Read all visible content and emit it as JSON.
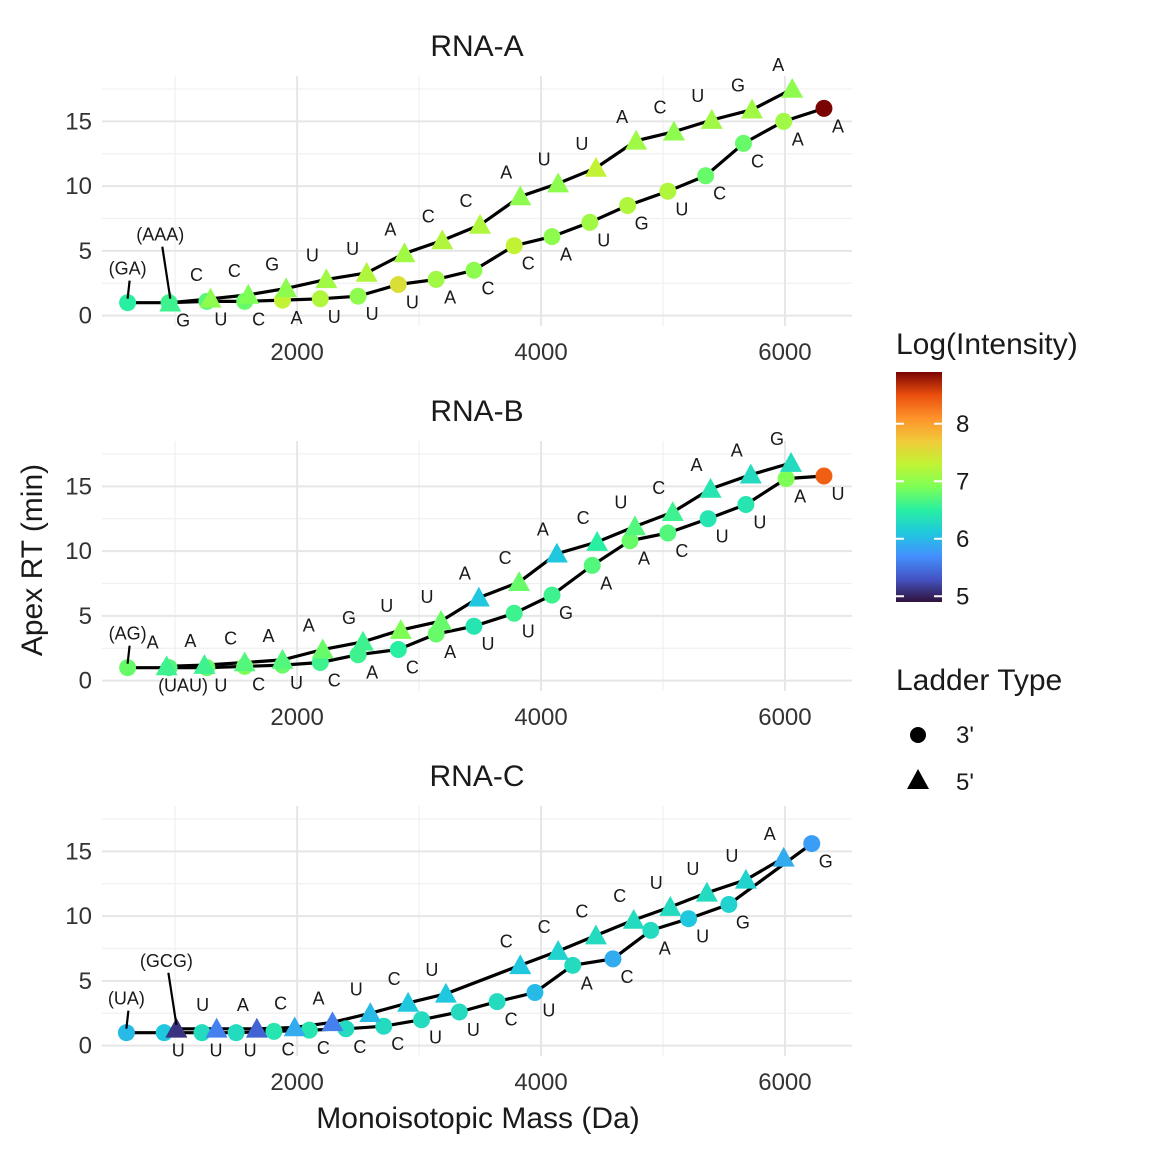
{
  "y_axis_title": "Apex RT (min)",
  "x_axis_title": "Monoisotopic Mass (Da)",
  "legend": {
    "color_title": "Log(Intensity)",
    "color_ticks": [
      "5",
      "6",
      "7",
      "8"
    ],
    "color_range": [
      4.9,
      8.9
    ],
    "shape_title": "Ladder Type",
    "shape_items": [
      {
        "label": "3'",
        "shape": "circle"
      },
      {
        "label": "5'",
        "shape": "triangle"
      }
    ]
  },
  "chart_data": [
    {
      "type": "scatter",
      "title": "RNA-A",
      "xlim": [
        400,
        6550
      ],
      "ylim": [
        -0.8,
        18.5
      ],
      "x_ticks": [
        "2000",
        "4000",
        "6000"
      ],
      "y_ticks": [
        "0",
        "5",
        "10",
        "15"
      ],
      "series": [
        {
          "name": "3'",
          "shape": "circle",
          "points": [
            {
              "x": 610,
              "y": 1.0,
              "c": 6.5,
              "label": "(GA)"
            },
            {
              "x": 950,
              "y": 1.0,
              "c": 6.6,
              "label": "G"
            },
            {
              "x": 1260,
              "y": 1.1,
              "c": 6.7,
              "label": "U"
            },
            {
              "x": 1570,
              "y": 1.1,
              "c": 6.8,
              "label": "C"
            },
            {
              "x": 1880,
              "y": 1.2,
              "c": 7.3,
              "label": "A"
            },
            {
              "x": 2190,
              "y": 1.3,
              "c": 7.2,
              "label": "U"
            },
            {
              "x": 2500,
              "y": 1.5,
              "c": 7.0,
              "label": "U"
            },
            {
              "x": 2830,
              "y": 2.4,
              "c": 7.5,
              "label": "U"
            },
            {
              "x": 3140,
              "y": 2.8,
              "c": 7.1,
              "label": "A"
            },
            {
              "x": 3450,
              "y": 3.5,
              "c": 7.0,
              "label": "C"
            },
            {
              "x": 3780,
              "y": 5.4,
              "c": 7.3,
              "label": "C"
            },
            {
              "x": 4090,
              "y": 6.1,
              "c": 7.0,
              "label": "A"
            },
            {
              "x": 4400,
              "y": 7.2,
              "c": 7.1,
              "label": "U"
            },
            {
              "x": 4710,
              "y": 8.5,
              "c": 7.2,
              "label": "G"
            },
            {
              "x": 5040,
              "y": 9.6,
              "c": 7.2,
              "label": "U"
            },
            {
              "x": 5350,
              "y": 10.8,
              "c": 6.8,
              "label": "C"
            },
            {
              "x": 5660,
              "y": 13.3,
              "c": 6.8,
              "label": "C"
            },
            {
              "x": 5990,
              "y": 15.0,
              "c": 7.1,
              "label": "A"
            },
            {
              "x": 6320,
              "y": 16.0,
              "c": 8.9,
              "label": "A"
            }
          ]
        },
        {
          "name": "5'",
          "shape": "triangle",
          "points": [
            {
              "x": 960,
              "y": 1.0,
              "c": 6.6,
              "label": "(AAA)"
            },
            {
              "x": 1290,
              "y": 1.3,
              "c": 7.0,
              "label": "C"
            },
            {
              "x": 1600,
              "y": 1.6,
              "c": 6.9,
              "label": "C"
            },
            {
              "x": 1910,
              "y": 2.1,
              "c": 7.0,
              "label": "G"
            },
            {
              "x": 2240,
              "y": 2.8,
              "c": 7.1,
              "label": "U"
            },
            {
              "x": 2570,
              "y": 3.3,
              "c": 7.2,
              "label": "U"
            },
            {
              "x": 2880,
              "y": 4.8,
              "c": 7.1,
              "label": "A"
            },
            {
              "x": 3190,
              "y": 5.8,
              "c": 7.2,
              "label": "C"
            },
            {
              "x": 3500,
              "y": 7.0,
              "c": 7.2,
              "label": "C"
            },
            {
              "x": 3830,
              "y": 9.2,
              "c": 7.0,
              "label": "A"
            },
            {
              "x": 4140,
              "y": 10.2,
              "c": 7.0,
              "label": "U"
            },
            {
              "x": 4450,
              "y": 11.4,
              "c": 7.3,
              "label": "U"
            },
            {
              "x": 4780,
              "y": 13.5,
              "c": 7.1,
              "label": "A"
            },
            {
              "x": 5090,
              "y": 14.2,
              "c": 7.0,
              "label": "C"
            },
            {
              "x": 5400,
              "y": 15.1,
              "c": 7.1,
              "label": "U"
            },
            {
              "x": 5730,
              "y": 15.9,
              "c": 7.1,
              "label": "G"
            },
            {
              "x": 6060,
              "y": 17.5,
              "c": 7.0,
              "label": "A"
            }
          ]
        }
      ]
    },
    {
      "type": "scatter",
      "title": "RNA-B",
      "xlim": [
        400,
        6550
      ],
      "ylim": [
        -0.8,
        18.5
      ],
      "x_ticks": [
        "2000",
        "4000",
        "6000"
      ],
      "y_ticks": [
        "0",
        "5",
        "10",
        "15"
      ],
      "series": [
        {
          "name": "3'",
          "shape": "circle",
          "points": [
            {
              "x": 610,
              "y": 1.0,
              "c": 6.8,
              "label": "(AG)"
            },
            {
              "x": 950,
              "y": 1.0,
              "c": 6.7,
              "label": "(UAU)"
            },
            {
              "x": 1260,
              "y": 1.0,
              "c": 6.8,
              "label": "U"
            },
            {
              "x": 1570,
              "y": 1.1,
              "c": 6.9,
              "label": "C"
            },
            {
              "x": 1880,
              "y": 1.2,
              "c": 6.8,
              "label": "U"
            },
            {
              "x": 2190,
              "y": 1.4,
              "c": 6.6,
              "label": "C"
            },
            {
              "x": 2500,
              "y": 2.0,
              "c": 6.6,
              "label": "A"
            },
            {
              "x": 2830,
              "y": 2.4,
              "c": 6.5,
              "label": "C"
            },
            {
              "x": 3140,
              "y": 3.6,
              "c": 6.8,
              "label": "A"
            },
            {
              "x": 3450,
              "y": 4.2,
              "c": 6.4,
              "label": "U"
            },
            {
              "x": 3780,
              "y": 5.2,
              "c": 6.6,
              "label": "U"
            },
            {
              "x": 4090,
              "y": 6.6,
              "c": 6.6,
              "label": "G"
            },
            {
              "x": 4420,
              "y": 8.9,
              "c": 6.7,
              "label": "A"
            },
            {
              "x": 4730,
              "y": 10.8,
              "c": 6.8,
              "label": "A"
            },
            {
              "x": 5040,
              "y": 11.4,
              "c": 6.7,
              "label": "C"
            },
            {
              "x": 5370,
              "y": 12.5,
              "c": 6.4,
              "label": "U"
            },
            {
              "x": 5680,
              "y": 13.6,
              "c": 6.4,
              "label": "U"
            },
            {
              "x": 6010,
              "y": 15.6,
              "c": 6.9,
              "label": "A"
            },
            {
              "x": 6320,
              "y": 15.8,
              "c": 8.4,
              "label": "U"
            }
          ]
        },
        {
          "name": "5'",
          "shape": "triangle",
          "points": [
            {
              "x": 930,
              "y": 1.1,
              "c": 6.6,
              "label": "A"
            },
            {
              "x": 1240,
              "y": 1.2,
              "c": 6.6,
              "label": "A"
            },
            {
              "x": 1570,
              "y": 1.4,
              "c": 6.7,
              "label": "C"
            },
            {
              "x": 1880,
              "y": 1.6,
              "c": 6.7,
              "label": "A"
            },
            {
              "x": 2210,
              "y": 2.4,
              "c": 6.8,
              "label": "A"
            },
            {
              "x": 2540,
              "y": 3.0,
              "c": 6.6,
              "label": "G"
            },
            {
              "x": 2850,
              "y": 3.9,
              "c": 6.9,
              "label": "U"
            },
            {
              "x": 3180,
              "y": 4.6,
              "c": 6.8,
              "label": "U"
            },
            {
              "x": 3490,
              "y": 6.4,
              "c": 6.1,
              "label": "A"
            },
            {
              "x": 3820,
              "y": 7.6,
              "c": 6.8,
              "label": "C"
            },
            {
              "x": 4130,
              "y": 9.8,
              "c": 6.1,
              "label": "A"
            },
            {
              "x": 4460,
              "y": 10.7,
              "c": 6.5,
              "label": "C"
            },
            {
              "x": 4770,
              "y": 11.9,
              "c": 6.7,
              "label": "U"
            },
            {
              "x": 5080,
              "y": 13.0,
              "c": 6.6,
              "label": "C"
            },
            {
              "x": 5390,
              "y": 14.8,
              "c": 6.4,
              "label": "A"
            },
            {
              "x": 5720,
              "y": 15.9,
              "c": 6.3,
              "label": "A"
            },
            {
              "x": 6050,
              "y": 16.8,
              "c": 6.3,
              "label": "G"
            }
          ]
        }
      ]
    },
    {
      "type": "scatter",
      "title": "RNA-C",
      "xlim": [
        400,
        6550
      ],
      "ylim": [
        -0.8,
        18.5
      ],
      "x_ticks": [
        "2000",
        "4000",
        "6000"
      ],
      "y_ticks": [
        "0",
        "5",
        "10",
        "15"
      ],
      "series": [
        {
          "name": "3'",
          "shape": "circle",
          "points": [
            {
              "x": 600,
              "y": 1.0,
              "c": 6.0,
              "label": "(UA)"
            },
            {
              "x": 910,
              "y": 1.0,
              "c": 6.1,
              "label": "U"
            },
            {
              "x": 1220,
              "y": 1.0,
              "c": 6.3,
              "label": "U"
            },
            {
              "x": 1500,
              "y": 1.0,
              "c": 6.3,
              "label": "U"
            },
            {
              "x": 1810,
              "y": 1.1,
              "c": 6.4,
              "label": "C"
            },
            {
              "x": 2100,
              "y": 1.2,
              "c": 6.4,
              "label": "C"
            },
            {
              "x": 2400,
              "y": 1.3,
              "c": 6.3,
              "label": "C"
            },
            {
              "x": 2710,
              "y": 1.5,
              "c": 6.3,
              "label": "C"
            },
            {
              "x": 3020,
              "y": 2.0,
              "c": 6.3,
              "label": "U"
            },
            {
              "x": 3330,
              "y": 2.6,
              "c": 6.3,
              "label": "U"
            },
            {
              "x": 3640,
              "y": 3.4,
              "c": 6.3,
              "label": "C"
            },
            {
              "x": 3950,
              "y": 4.1,
              "c": 6.0,
              "label": "U"
            },
            {
              "x": 4260,
              "y": 6.2,
              "c": 6.3,
              "label": "A"
            },
            {
              "x": 4590,
              "y": 6.7,
              "c": 5.9,
              "label": "C"
            },
            {
              "x": 4900,
              "y": 8.9,
              "c": 6.3,
              "label": "A"
            },
            {
              "x": 5210,
              "y": 9.8,
              "c": 6.1,
              "label": "U"
            },
            {
              "x": 5540,
              "y": 10.9,
              "c": 6.2,
              "label": "G"
            },
            {
              "x": 6220,
              "y": 15.6,
              "c": 5.8,
              "label": "G"
            }
          ]
        },
        {
          "name": "5'",
          "shape": "triangle",
          "points": [
            {
              "x": 1010,
              "y": 1.3,
              "c": 5.1,
              "label": "(GCG)"
            },
            {
              "x": 1340,
              "y": 1.3,
              "c": 5.6,
              "label": "U"
            },
            {
              "x": 1670,
              "y": 1.3,
              "c": 5.4,
              "label": "A"
            },
            {
              "x": 1980,
              "y": 1.4,
              "c": 5.9,
              "label": "C"
            },
            {
              "x": 2290,
              "y": 1.8,
              "c": 5.6,
              "label": "A"
            },
            {
              "x": 2600,
              "y": 2.5,
              "c": 6.0,
              "label": "U"
            },
            {
              "x": 2910,
              "y": 3.3,
              "c": 6.1,
              "label": "C"
            },
            {
              "x": 3220,
              "y": 4.0,
              "c": 6.1,
              "label": "U"
            },
            {
              "x": 3830,
              "y": 6.2,
              "c": 6.1,
              "label": "C"
            },
            {
              "x": 4140,
              "y": 7.3,
              "c": 6.2,
              "label": "C"
            },
            {
              "x": 4450,
              "y": 8.5,
              "c": 6.3,
              "label": "C"
            },
            {
              "x": 4760,
              "y": 9.7,
              "c": 6.3,
              "label": "C"
            },
            {
              "x": 5060,
              "y": 10.7,
              "c": 6.3,
              "label": "U"
            },
            {
              "x": 5360,
              "y": 11.8,
              "c": 6.3,
              "label": "U"
            },
            {
              "x": 5680,
              "y": 12.8,
              "c": 6.2,
              "label": "U"
            },
            {
              "x": 5990,
              "y": 14.5,
              "c": 5.9,
              "label": "A"
            }
          ]
        }
      ]
    }
  ]
}
